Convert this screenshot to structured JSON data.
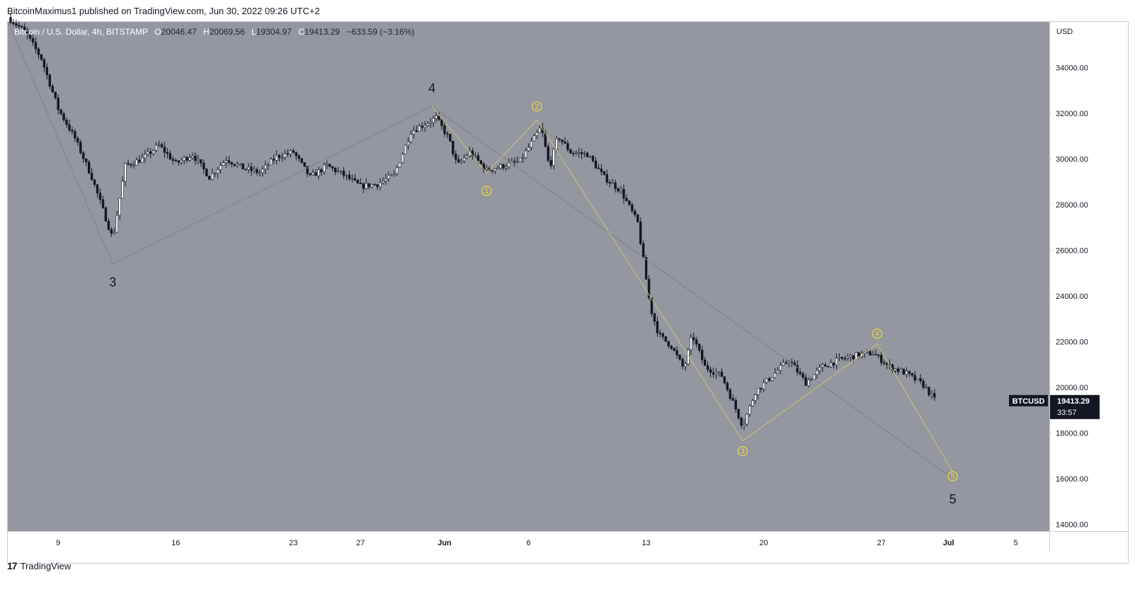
{
  "header": {
    "published_by": "BitcoinMaximus1 published on TradingView.com, Jun 30, 2022 09:26 UTC+2"
  },
  "legend": {
    "symbol": "Bitcoin / U.S. Dollar, 4h, BITSTAMP",
    "open_label": "O",
    "open": "20046.47",
    "high_label": "H",
    "high": "20069.56",
    "low_label": "L",
    "low": "19304.97",
    "close_label": "C",
    "close": "19413.29",
    "change": "−633.59 (−3.16%)"
  },
  "footer": {
    "brand": "TradingView",
    "logo_icon": "tradingview-logo-icon"
  },
  "colors": {
    "plot_bg": "#94979f",
    "candle": "#131722",
    "wave_line": "#cfc275",
    "trend_line": "#7d8087",
    "yellow_label": "#f2dc3a",
    "badge_bg": "#131722"
  },
  "chart_data": {
    "type": "candlestick",
    "y_axis_label": "USD",
    "ylim": [
      13700,
      36000
    ],
    "y_ticks": [
      14000,
      16000,
      18000,
      20000,
      22000,
      24000,
      26000,
      28000,
      30000,
      32000,
      34000
    ],
    "y_tick_labels": [
      "14000.00",
      "16000.00",
      "18000.00",
      "20000.00",
      "22000.00",
      "24000.00",
      "26000.00",
      "28000.00",
      "30000.00",
      "32000.00",
      "34000.00"
    ],
    "xlim": [
      "2022-05-06",
      "2022-07-07"
    ],
    "x_ticks": [
      {
        "label": "9",
        "date": "2022-05-09"
      },
      {
        "label": "16",
        "date": "2022-05-16"
      },
      {
        "label": "23",
        "date": "2022-05-23"
      },
      {
        "label": "27",
        "date": "2022-05-27"
      },
      {
        "label": "Jun",
        "date": "2022-06-01"
      },
      {
        "label": "6",
        "date": "2022-06-06"
      },
      {
        "label": "13",
        "date": "2022-06-13"
      },
      {
        "label": "20",
        "date": "2022-06-20"
      },
      {
        "label": "27",
        "date": "2022-06-27"
      },
      {
        "label": "Jul",
        "date": "2022-07-01"
      },
      {
        "label": "5",
        "date": "2022-07-05"
      }
    ],
    "price_anchors": [
      {
        "date": "2022-05-06T00:00",
        "price": 36200
      },
      {
        "date": "2022-05-07T00:00",
        "price": 35600
      },
      {
        "date": "2022-05-08T00:00",
        "price": 34400
      },
      {
        "date": "2022-05-09T00:00",
        "price": 32200
      },
      {
        "date": "2022-05-10T00:00",
        "price": 30900
      },
      {
        "date": "2022-05-11T00:00",
        "price": 29200
      },
      {
        "date": "2022-05-12T06:00",
        "price": 26500
      },
      {
        "date": "2022-05-13T00:00",
        "price": 29700
      },
      {
        "date": "2022-05-14T00:00",
        "price": 30000
      },
      {
        "date": "2022-05-15T00:00",
        "price": 30600
      },
      {
        "date": "2022-05-16T00:00",
        "price": 29800
      },
      {
        "date": "2022-05-17T00:00",
        "price": 30200
      },
      {
        "date": "2022-05-18T00:00",
        "price": 29200
      },
      {
        "date": "2022-05-19T00:00",
        "price": 30000
      },
      {
        "date": "2022-05-20T00:00",
        "price": 29600
      },
      {
        "date": "2022-05-21T00:00",
        "price": 29400
      },
      {
        "date": "2022-05-22T00:00",
        "price": 30100
      },
      {
        "date": "2022-05-23T00:00",
        "price": 30300
      },
      {
        "date": "2022-05-24T00:00",
        "price": 29200
      },
      {
        "date": "2022-05-25T00:00",
        "price": 29700
      },
      {
        "date": "2022-05-26T00:00",
        "price": 29300
      },
      {
        "date": "2022-05-27T00:00",
        "price": 28800
      },
      {
        "date": "2022-05-28T00:00",
        "price": 28900
      },
      {
        "date": "2022-05-29T00:00",
        "price": 29300
      },
      {
        "date": "2022-05-30T00:00",
        "price": 31200
      },
      {
        "date": "2022-05-31T12:00",
        "price": 31800
      },
      {
        "date": "2022-06-01T06:00",
        "price": 30900
      },
      {
        "date": "2022-06-01T18:00",
        "price": 29700
      },
      {
        "date": "2022-06-02T12:00",
        "price": 30300
      },
      {
        "date": "2022-06-03T12:00",
        "price": 29500
      },
      {
        "date": "2022-06-04T12:00",
        "price": 29700
      },
      {
        "date": "2022-06-05T12:00",
        "price": 29900
      },
      {
        "date": "2022-06-06T18:00",
        "price": 31400
      },
      {
        "date": "2022-06-07T06:00",
        "price": 29600
      },
      {
        "date": "2022-06-07T18:00",
        "price": 31000
      },
      {
        "date": "2022-06-08T12:00",
        "price": 30300
      },
      {
        "date": "2022-06-09T12:00",
        "price": 30200
      },
      {
        "date": "2022-06-10T12:00",
        "price": 29200
      },
      {
        "date": "2022-06-11T12:00",
        "price": 28600
      },
      {
        "date": "2022-06-12T12:00",
        "price": 27200
      },
      {
        "date": "2022-06-13T06:00",
        "price": 23500
      },
      {
        "date": "2022-06-13T18:00",
        "price": 22300
      },
      {
        "date": "2022-06-14T12:00",
        "price": 21800
      },
      {
        "date": "2022-06-15T06:00",
        "price": 20800
      },
      {
        "date": "2022-06-15T18:00",
        "price": 22300
      },
      {
        "date": "2022-06-16T12:00",
        "price": 20900
      },
      {
        "date": "2022-06-17T12:00",
        "price": 20500
      },
      {
        "date": "2022-06-18T06:00",
        "price": 19200
      },
      {
        "date": "2022-06-18T18:00",
        "price": 18300
      },
      {
        "date": "2022-06-19T12:00",
        "price": 19800
      },
      {
        "date": "2022-06-20T12:00",
        "price": 20500
      },
      {
        "date": "2022-06-21T12:00",
        "price": 21200
      },
      {
        "date": "2022-06-22T12:00",
        "price": 20200
      },
      {
        "date": "2022-06-23T12:00",
        "price": 20900
      },
      {
        "date": "2022-06-24T12:00",
        "price": 21200
      },
      {
        "date": "2022-06-25T12:00",
        "price": 21400
      },
      {
        "date": "2022-06-26T12:00",
        "price": 21500
      },
      {
        "date": "2022-06-27T12:00",
        "price": 20900
      },
      {
        "date": "2022-06-28T12:00",
        "price": 20600
      },
      {
        "date": "2022-06-29T12:00",
        "price": 20100
      },
      {
        "date": "2022-06-30T05:00",
        "price": 19413
      }
    ],
    "last_price": {
      "symbol": "BTCUSD",
      "price": 19413.29,
      "label": "19413.29",
      "countdown": "33:57"
    },
    "trend_line": {
      "points": [
        {
          "date": "2022-05-06T00:00",
          "price": 36000
        },
        {
          "date": "2022-05-12T06:00",
          "price": 25400
        },
        {
          "date": "2022-05-31T06:00",
          "price": 32300
        },
        {
          "date": "2022-07-01T06:00",
          "price": 16000
        }
      ]
    },
    "wave_line": {
      "points": [
        {
          "date": "2022-05-31T06:00",
          "price": 32300
        },
        {
          "date": "2022-06-03T12:00",
          "price": 29400
        },
        {
          "date": "2022-06-06T12:00",
          "price": 31700
        },
        {
          "date": "2022-06-18T18:00",
          "price": 17650
        },
        {
          "date": "2022-06-26T18:00",
          "price": 21900
        },
        {
          "date": "2022-07-01T06:00",
          "price": 16300
        }
      ]
    },
    "major_labels": [
      {
        "text": "3",
        "date": "2022-05-12T06:00",
        "price": 24600
      },
      {
        "text": "4",
        "date": "2022-05-31T06:00",
        "price": 33100
      },
      {
        "text": "5",
        "date": "2022-07-01T06:00",
        "price": 15100
      }
    ],
    "minor_labels": [
      {
        "text": "1",
        "date": "2022-06-03T12:00",
        "price": 28600
      },
      {
        "text": "2",
        "date": "2022-06-06T12:00",
        "price": 32300
      },
      {
        "text": "3",
        "date": "2022-06-18T18:00",
        "price": 17200
      },
      {
        "text": "4",
        "date": "2022-06-26T18:00",
        "price": 22350
      },
      {
        "text": "5",
        "date": "2022-07-01T06:00",
        "price": 16100
      }
    ]
  }
}
